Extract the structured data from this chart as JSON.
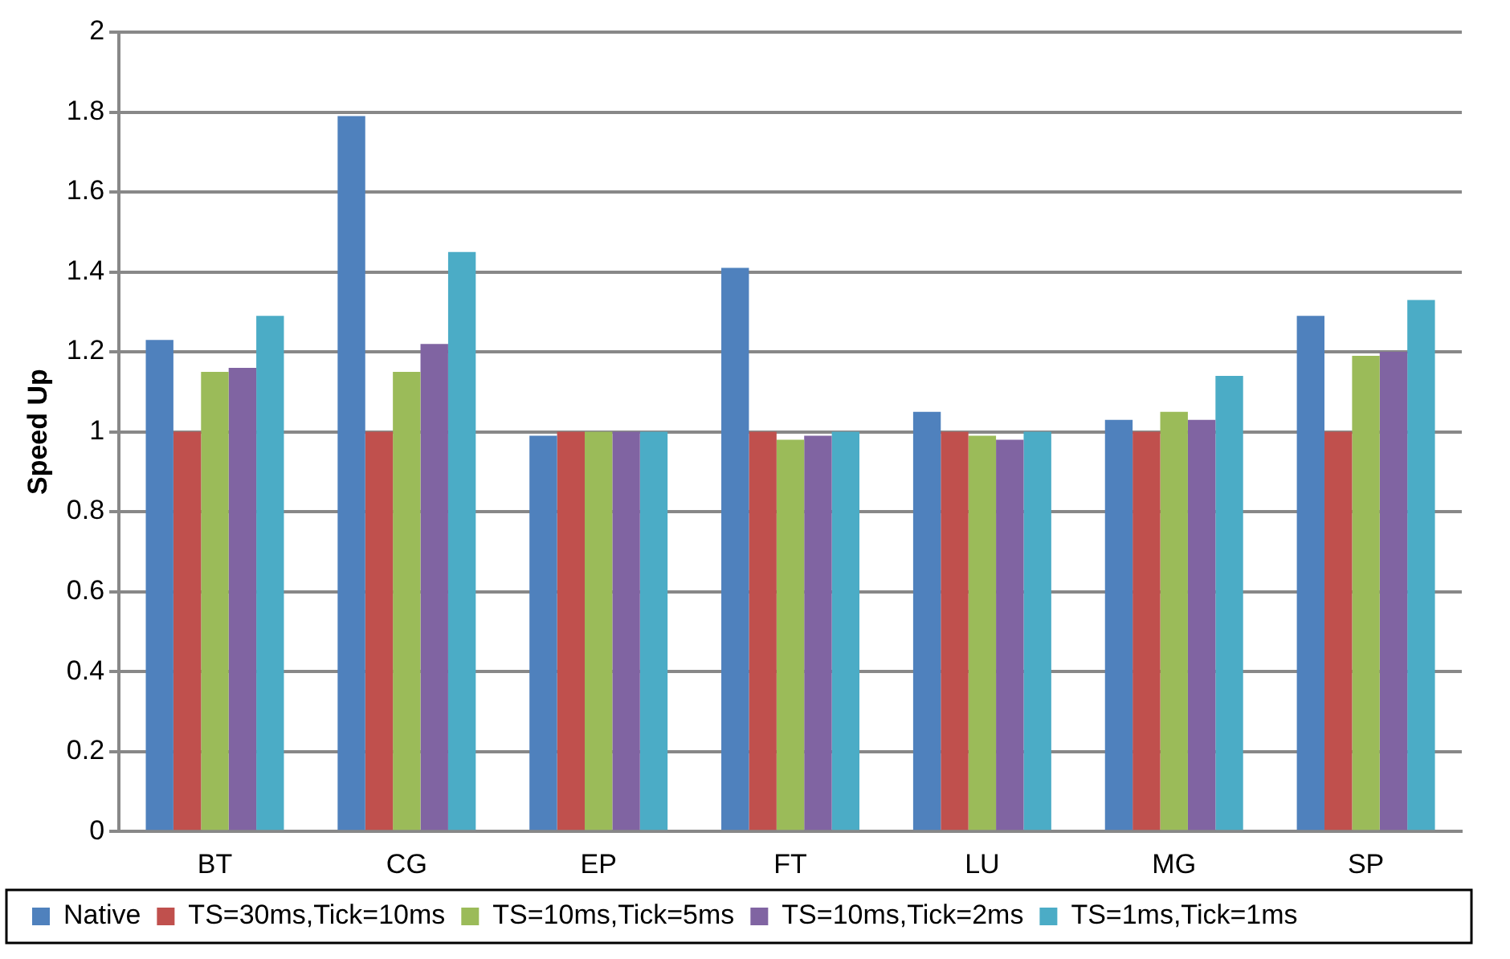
{
  "chart_data": {
    "type": "bar",
    "ylabel": "Speed Up",
    "categories": [
      "BT",
      "CG",
      "EP",
      "FT",
      "LU",
      "MG",
      "SP"
    ],
    "series": [
      {
        "name": "Native",
        "color": "#4f81bd",
        "values": [
          1.23,
          1.79,
          0.99,
          1.41,
          1.05,
          1.03,
          1.29
        ]
      },
      {
        "name": "TS=30ms,Tick=10ms",
        "color": "#c0504d",
        "values": [
          1.0,
          1.0,
          1.0,
          1.0,
          1.0,
          1.0,
          1.0
        ]
      },
      {
        "name": "TS=10ms,Tick=5ms",
        "color": "#9bbb59",
        "values": [
          1.15,
          1.15,
          1.0,
          0.98,
          0.99,
          1.05,
          1.19
        ]
      },
      {
        "name": "TS=10ms,Tick=2ms",
        "color": "#8064a2",
        "values": [
          1.16,
          1.22,
          1.0,
          0.99,
          0.98,
          1.03,
          1.2
        ]
      },
      {
        "name": "TS=1ms,Tick=1ms",
        "color": "#4bacc6",
        "values": [
          1.29,
          1.45,
          1.0,
          1.0,
          1.0,
          1.14,
          1.33
        ]
      }
    ],
    "ylim": [
      0,
      2
    ],
    "yticks": [
      0,
      0.2,
      0.4,
      0.6,
      0.8,
      1,
      1.2,
      1.4,
      1.6,
      1.8,
      2
    ],
    "grid": "y",
    "legend": "bottom"
  }
}
